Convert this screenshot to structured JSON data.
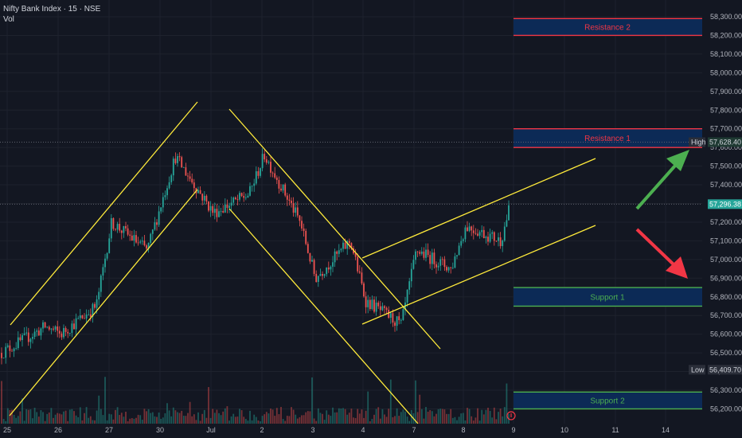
{
  "header": {
    "symbol": "Nifty Bank Index · 15 · NSE",
    "indicator": "Vol"
  },
  "colors": {
    "background": "#131722",
    "up": "#26a69a",
    "down": "#ef5350",
    "channel": "#ffeb3b",
    "resistance": "#f23645",
    "support": "#4caf50",
    "zone_fill": "#0c2a56",
    "arrow_up": "#4caf50",
    "arrow_down": "#f23645"
  },
  "chart_data": {
    "type": "candlestick",
    "title": "Nifty Bank Index · 15 · NSE",
    "x_ticks": [
      "25",
      "26",
      "27",
      "30",
      "Jul",
      "2",
      "3",
      "4",
      "7",
      "8",
      "9",
      "10",
      "11",
      "14"
    ],
    "y_ticks": [
      "56,200.00",
      "56,300.00",
      "56,400.00",
      "56,500.00",
      "56,600.00",
      "56,700.00",
      "56,800.00",
      "56,900.00",
      "57,000.00",
      "57,100.00",
      "57,200.00",
      "57,300.00",
      "57,400.00",
      "57,500.00",
      "57,600.00",
      "57,700.00",
      "57,800.00",
      "57,900.00",
      "58,000.00",
      "58,100.00",
      "58,200.00",
      "58,300.00"
    ],
    "ylim": [
      56170,
      58330
    ],
    "price_path_keypoints": [
      {
        "x": "25",
        "price": 56500
      },
      {
        "x": "25",
        "price": 56640
      },
      {
        "x": "26",
        "price": 56600
      },
      {
        "x": "26",
        "price": 56750
      },
      {
        "x": "27",
        "price": 57200
      },
      {
        "x": "27",
        "price": 57050
      },
      {
        "x": "30",
        "price": 57550
      },
      {
        "x": "Jul",
        "price": 57250
      },
      {
        "x": "Jul",
        "price": 57350
      },
      {
        "x": "2",
        "price": 57560
      },
      {
        "x": "2",
        "price": 57200
      },
      {
        "x": "3",
        "price": 56900
      },
      {
        "x": "3",
        "price": 57100
      },
      {
        "x": "4",
        "price": 56780
      },
      {
        "x": "4",
        "price": 56650
      },
      {
        "x": "7",
        "price": 57050
      },
      {
        "x": "7",
        "price": 56950
      },
      {
        "x": "8",
        "price": 57180
      },
      {
        "x": "8",
        "price": 57100
      },
      {
        "x": "9",
        "price": 57296
      }
    ],
    "current_price": "57,296.38",
    "high": {
      "label": "High",
      "value": "57,628.40"
    },
    "low": {
      "label": "Low",
      "value": "56,409.70"
    },
    "zones": [
      {
        "label": "Resistance 2",
        "top": 58290,
        "bottom": 58200,
        "kind": "resistance"
      },
      {
        "label": "Resistance 1",
        "top": 57700,
        "bottom": 57600,
        "kind": "resistance"
      },
      {
        "label": "Support 1",
        "top": 56850,
        "bottom": 56750,
        "kind": "support"
      },
      {
        "label": "Support 2",
        "top": 56290,
        "bottom": 56200,
        "kind": "support"
      }
    ],
    "trend_channels": [
      {
        "name": "rising channel 25-30"
      },
      {
        "name": "falling channel 1-7"
      },
      {
        "name": "rising channel 4-9"
      }
    ],
    "grid": true,
    "legend": "none"
  }
}
